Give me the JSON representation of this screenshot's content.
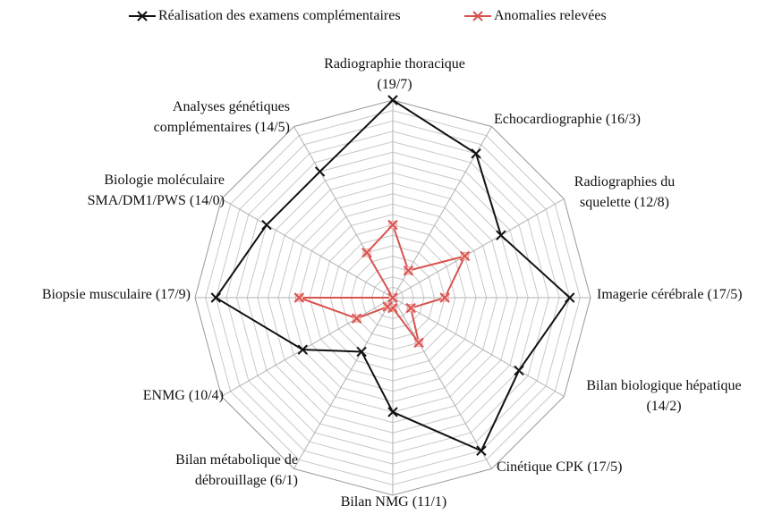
{
  "chart_data": {
    "type": "radar",
    "categories": [
      "Radiographie thoracique\n(19/7)",
      "Echocardiographie (16/3)",
      "Radiographies du\nsquelette (12/8)",
      "Imagerie cérébrale (17/5)",
      "Bilan biologique hépatique\n(14/2)",
      "Cinétique CPK (17/5)",
      "Bilan NMG (11/1)",
      "Bilan métabolique de\ndébrouillage (6/1)",
      "ENMG (10/4)",
      "Biopsie musculaire (17/9)",
      "Biologie moléculaire\nSMA/DM1/PWS (14/0)",
      "Analyses génétiques\ncomplémentaires (14/5)"
    ],
    "series": [
      {
        "name": "Réalisation des examens complémentaires",
        "color": "#111111",
        "values": [
          19,
          16,
          12,
          17,
          14,
          17,
          11,
          6,
          10,
          17,
          14,
          14
        ]
      },
      {
        "name": "Anomalies relevées",
        "color": "#d9534f",
        "values": [
          7,
          3,
          8,
          5,
          2,
          5,
          1,
          1,
          4,
          9,
          0,
          5
        ]
      }
    ],
    "rlim": [
      0,
      19
    ],
    "rticks": [
      0,
      1,
      2,
      3,
      4,
      5,
      6,
      7,
      8,
      9,
      10,
      11,
      12,
      13,
      14,
      15,
      16,
      17,
      18,
      19
    ],
    "grid": true,
    "legend": "top"
  }
}
